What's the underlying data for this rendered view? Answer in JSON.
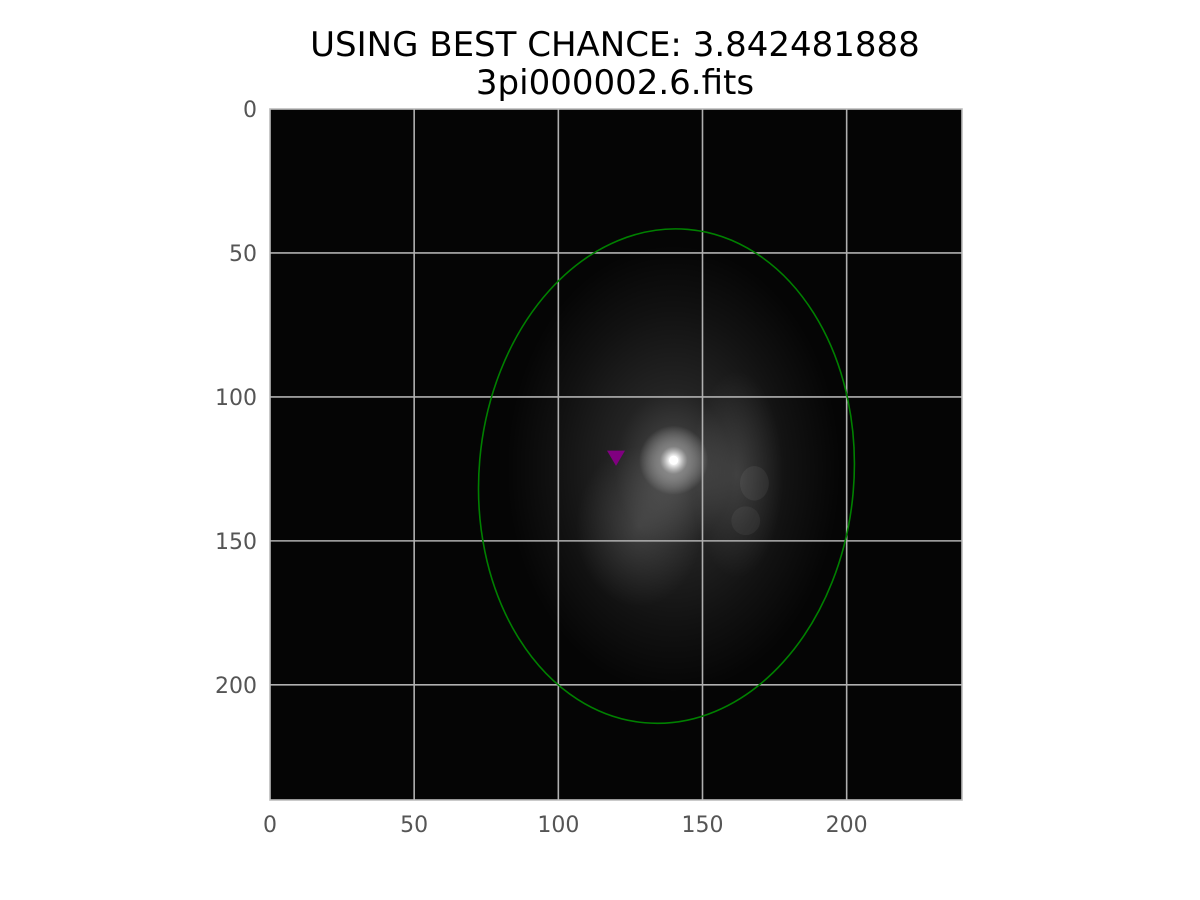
{
  "chart_data": {
    "type": "heatmap",
    "title_lines": [
      "USING BEST CHANCE: 3.842481888",
      "3pi000002.6.fits"
    ],
    "image": {
      "width": 240,
      "height": 240,
      "colormap": "gray",
      "background_level": 0.02,
      "bright_source": {
        "x": 140,
        "y": 122,
        "peak": 1.0
      },
      "galaxy_center": {
        "x": 140,
        "y": 125
      }
    },
    "x_axis": {
      "lim": [
        0,
        240
      ],
      "ticks": [
        0,
        50,
        100,
        150,
        200
      ],
      "tick_labels": [
        "0",
        "50",
        "100",
        "150",
        "200"
      ]
    },
    "y_axis": {
      "lim": [
        240,
        0
      ],
      "inverted": true,
      "ticks": [
        0,
        50,
        100,
        150,
        200
      ],
      "tick_labels": [
        "0",
        "50",
        "100",
        "150",
        "200"
      ]
    },
    "grid": true,
    "grid_color": "#b0b0b0",
    "ellipse": {
      "center": [
        137.5,
        127.5
      ],
      "width": 130,
      "height": 172,
      "angle_deg": 5,
      "color": "#008000"
    },
    "marker": {
      "x": 120,
      "y": 121,
      "symbol": "triangle-down",
      "color": "#800080"
    }
  }
}
